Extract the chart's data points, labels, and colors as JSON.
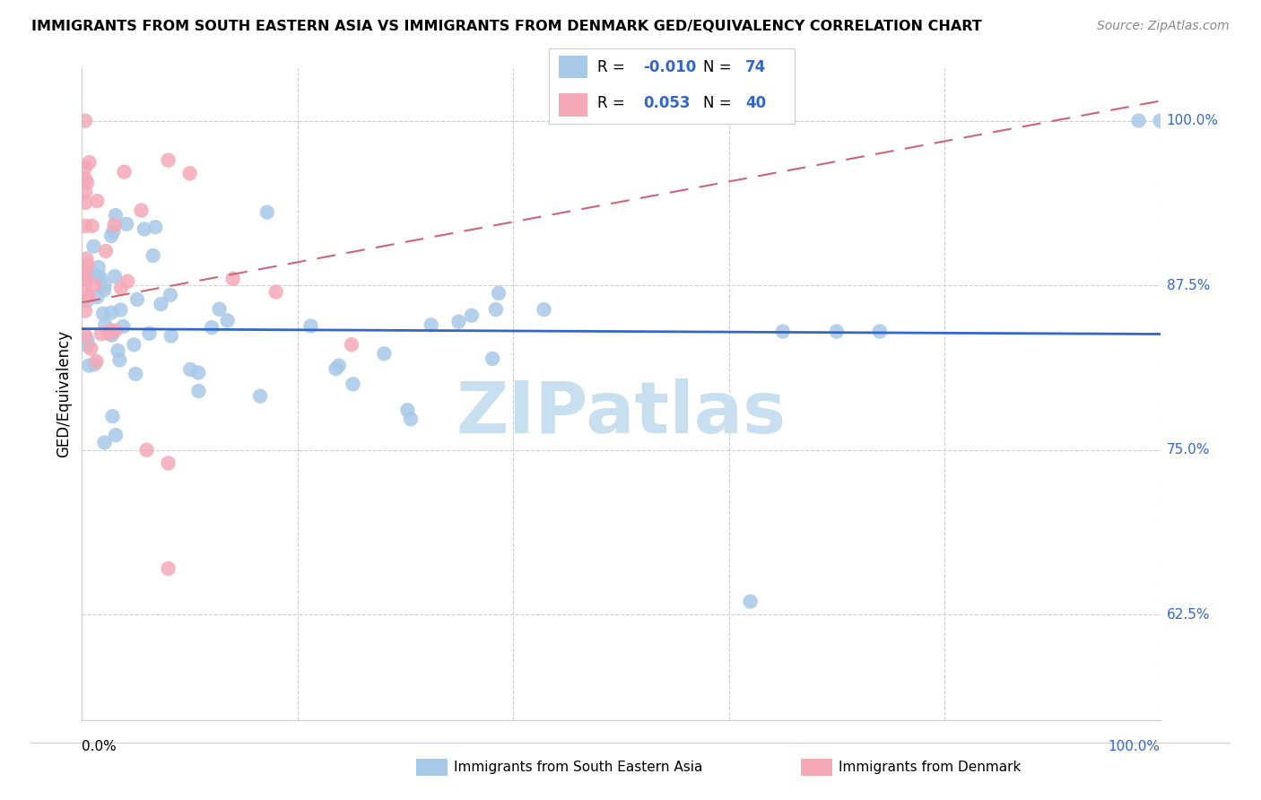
{
  "title": "IMMIGRANTS FROM SOUTH EASTERN ASIA VS IMMIGRANTS FROM DENMARK GED/EQUIVALENCY CORRELATION CHART",
  "source": "Source: ZipAtlas.com",
  "ylabel": "GED/Equivalency",
  "legend_r_blue": "-0.010",
  "legend_n_blue": "74",
  "legend_r_pink": "0.053",
  "legend_n_pink": "40",
  "blue_color": "#a8c8e8",
  "pink_color": "#f4a8b8",
  "blue_line_color": "#3366cc",
  "pink_line_color": "#cc6677",
  "watermark_color": "#c8dff0",
  "grid_color": "#cccccc",
  "right_label_color": "#3366cc",
  "xlim": [
    0.0,
    1.0
  ],
  "ylim": [
    0.545,
    1.04
  ],
  "ytick_values": [
    1.0,
    0.875,
    0.75,
    0.625
  ],
  "ytick_labels": [
    "100.0%",
    "87.5%",
    "75.0%",
    "62.5%"
  ],
  "blue_trend_y0": 0.842,
  "blue_trend_y1": 0.838,
  "pink_trend_y0": 0.862,
  "pink_trend_y1": 1.015
}
